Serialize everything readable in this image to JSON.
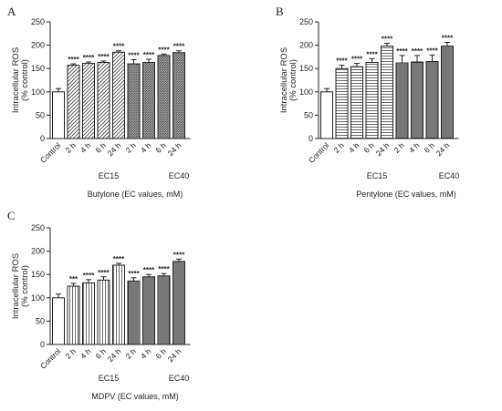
{
  "colors": {
    "axis": "#222222",
    "bar_fill": "#ffffff",
    "bar_stroke": "#222222",
    "hatch": "#444444"
  },
  "chart_data": [
    {
      "type": "bar",
      "panel_label": "A",
      "ylabel_line1": "Intracellular ROS",
      "ylabel_line2": "(% control)",
      "xlabel": "Butylone (EC values, mM)",
      "ylim": [
        0,
        250
      ],
      "yticks": [
        "0",
        "50",
        "100",
        "150",
        "200",
        "250"
      ],
      "categories": [
        "Control",
        "2 h",
        "4 h",
        "6 h",
        "24 h",
        "2 h",
        "4 h",
        "6 h",
        "24 h"
      ],
      "groups": [
        "EC15",
        "EC40"
      ],
      "values": [
        100,
        157,
        161,
        163,
        185,
        160,
        163,
        178,
        184
      ],
      "errors": [
        7,
        3,
        3,
        3,
        3,
        9,
        7,
        3,
        4
      ],
      "significance": [
        "",
        "****",
        "****",
        "****",
        "****",
        "****",
        "****",
        "****",
        "****"
      ],
      "patterns": [
        "none",
        "diag",
        "diag",
        "diag",
        "diag",
        "diag-dense",
        "diag-dense",
        "diag-dense",
        "diag-dense"
      ]
    },
    {
      "type": "bar",
      "panel_label": "B",
      "ylabel_line1": "Intracellular ROS",
      "ylabel_line2": "(% control)",
      "xlabel": "Pentylone (EC values, mM)",
      "ylim": [
        0,
        250
      ],
      "yticks": [
        "0",
        "50",
        "100",
        "150",
        "200",
        "250"
      ],
      "categories": [
        "Control",
        "2 h",
        "4 h",
        "6 h",
        "24 h",
        "2 h",
        "4 h",
        "6 h",
        "24 h"
      ],
      "groups": [
        "EC15",
        "EC40"
      ],
      "values": [
        100,
        150,
        154,
        163,
        198,
        162,
        164,
        165,
        198
      ],
      "errors": [
        7,
        7,
        7,
        8,
        6,
        16,
        14,
        14,
        8
      ],
      "significance": [
        "",
        "****",
        "****",
        "****",
        "****",
        "****",
        "****",
        "****",
        "****"
      ],
      "patterns": [
        "none",
        "hline",
        "hline",
        "hline",
        "hline",
        "hline-dense",
        "hline-dense",
        "hline-dense",
        "hline-dense"
      ]
    },
    {
      "type": "bar",
      "panel_label": "C",
      "ylabel_line1": "Intracellular ROS",
      "ylabel_line2": "(% control)",
      "xlabel": "MDPV (EC values, mM)",
      "ylim": [
        0,
        250
      ],
      "yticks": [
        "0",
        "50",
        "100",
        "150",
        "200",
        "250"
      ],
      "categories": [
        "Control",
        "2 h",
        "4 h",
        "6 h",
        "24 h",
        "2 h",
        "4 h",
        "6 h",
        "24 h"
      ],
      "groups": [
        "EC15",
        "EC40"
      ],
      "values": [
        100,
        125,
        132,
        138,
        170,
        136,
        145,
        147,
        178
      ],
      "errors": [
        8,
        6,
        7,
        7,
        4,
        7,
        5,
        5,
        5
      ],
      "significance": [
        "",
        "***",
        "****",
        "****",
        "****",
        "****",
        "****",
        "****",
        "****"
      ],
      "patterns": [
        "none",
        "vline",
        "vline",
        "vline",
        "vline",
        "vline-dense",
        "vline-dense",
        "vline-dense",
        "vline-dense"
      ]
    }
  ]
}
